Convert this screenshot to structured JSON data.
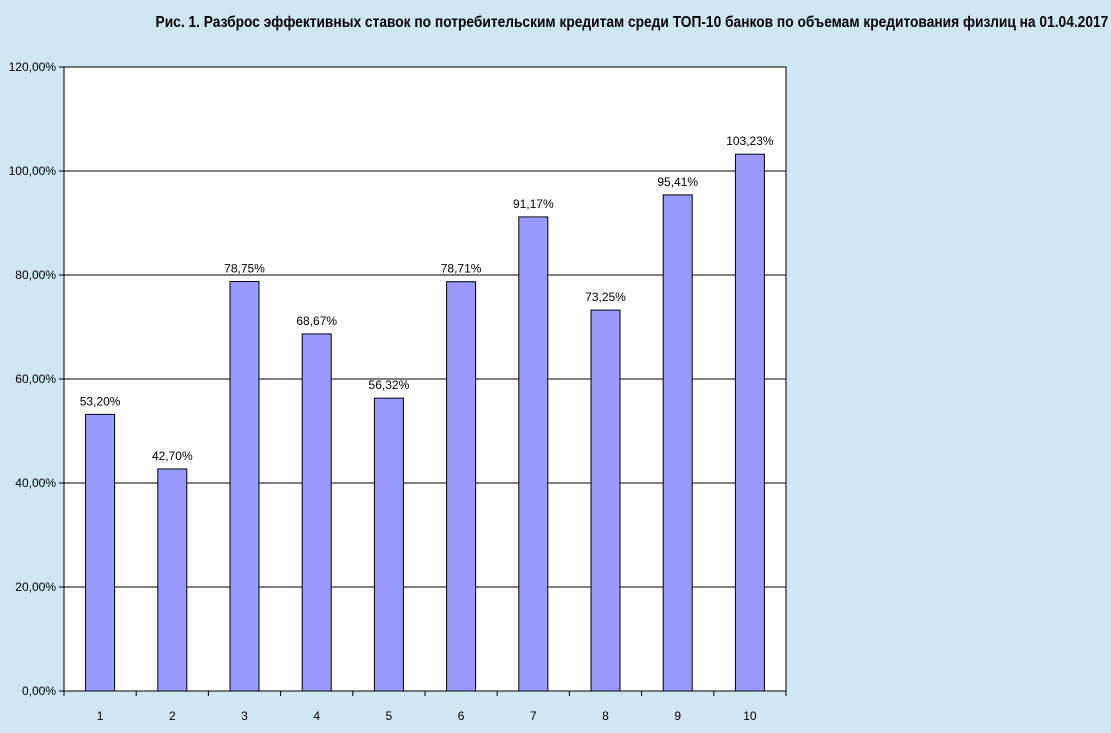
{
  "chart_data": {
    "type": "bar",
    "title": "Рис. 1. Разброс эффективных ставок по потребительским кредитам среди ТОП-10 банков по объемам кредитования физлиц на 01.04.2017",
    "categories": [
      "1",
      "2",
      "3",
      "4",
      "5",
      "6",
      "7",
      "8",
      "9",
      "10"
    ],
    "values": [
      53.2,
      42.7,
      78.75,
      68.67,
      56.32,
      78.71,
      91.17,
      73.25,
      95.41,
      103.23
    ],
    "data_labels": [
      "53,20%",
      "42,70%",
      "78,75%",
      "68,67%",
      "56,32%",
      "78,71%",
      "91,17%",
      "73,25%",
      "95,41%",
      "103,23%"
    ],
    "y_ticks": [
      0,
      20,
      40,
      60,
      80,
      100,
      120
    ],
    "y_tick_labels": [
      "0,00%",
      "20,00%",
      "40,00%",
      "60,00%",
      "80,00%",
      "100,00%",
      "120,00%"
    ],
    "ylim": [
      0,
      120
    ],
    "xlabel": "",
    "ylabel": "",
    "grid": true,
    "legend": "none",
    "colors": {
      "bar_fill": "#9999ff",
      "bar_stroke": "#000000",
      "plot_background": "#ffffff",
      "page_background": "#cfe6f3",
      "grid": "#000000"
    }
  }
}
